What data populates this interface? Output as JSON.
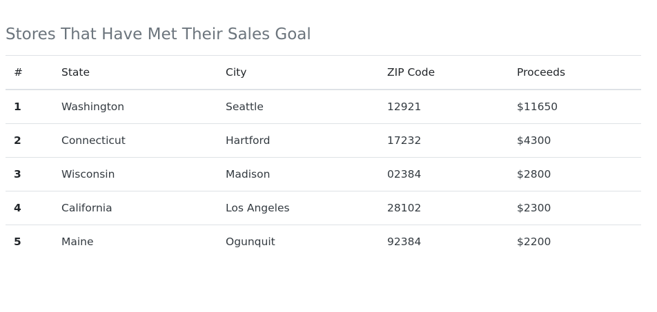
{
  "page": {
    "title": "Stores That Have Met Their Sales Goal"
  },
  "table": {
    "headers": {
      "num": "#",
      "state": "State",
      "city": "City",
      "zip": "ZIP Code",
      "proceeds": "Proceeds"
    },
    "rows": [
      {
        "num": "1",
        "state": "Washington",
        "city": "Seattle",
        "zip": "12921",
        "proceeds": "$11650"
      },
      {
        "num": "2",
        "state": "Connecticut",
        "city": "Hartford",
        "zip": "17232",
        "proceeds": "$4300"
      },
      {
        "num": "3",
        "state": "Wisconsin",
        "city": "Madison",
        "zip": "02384",
        "proceeds": "$2800"
      },
      {
        "num": "4",
        "state": "California",
        "city": "Los Angeles",
        "zip": "28102",
        "proceeds": "$2300"
      },
      {
        "num": "5",
        "state": "Maine",
        "city": "Ogunquit",
        "zip": "92384",
        "proceeds": "$2200"
      }
    ]
  },
  "colors": {
    "title": "#6c757d",
    "text": "#212529",
    "border": "#dee2e6"
  }
}
